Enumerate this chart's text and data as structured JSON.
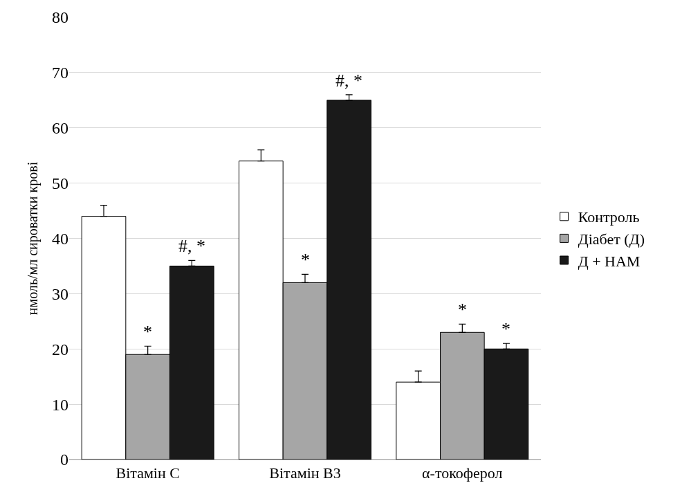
{
  "chart_data": {
    "type": "bar",
    "ylabel": "нмоль/мл сироватки крові",
    "categories": [
      "Вітамін С",
      "Вітамін В3",
      "α-токоферол"
    ],
    "series": [
      {
        "name": "Контроль",
        "color": "#ffffff",
        "values": [
          44,
          54,
          14
        ],
        "errors": [
          [
            44,
            46
          ],
          [
            54,
            56
          ],
          [
            14,
            16
          ]
        ]
      },
      {
        "name": "Діабет (Д)",
        "color": "#a6a6a6",
        "values": [
          19,
          32,
          23
        ],
        "errors": [
          [
            19,
            20.5
          ],
          [
            32,
            33.5
          ],
          [
            23,
            24.5
          ]
        ],
        "value_labels": [
          "*",
          "*",
          "*"
        ]
      },
      {
        "name": "Д + НАМ",
        "color": "#1a1a1a",
        "values": [
          35,
          65,
          20
        ],
        "errors": [
          [
            35,
            36
          ],
          [
            65,
            66
          ],
          [
            20,
            21
          ]
        ],
        "value_labels": [
          "#, *",
          "#, *",
          "*"
        ]
      }
    ],
    "ylim": [
      0,
      80
    ],
    "yticks": [
      0,
      10,
      20,
      30,
      40,
      50,
      60,
      70,
      80
    ],
    "grid": "y",
    "legend": "right"
  }
}
